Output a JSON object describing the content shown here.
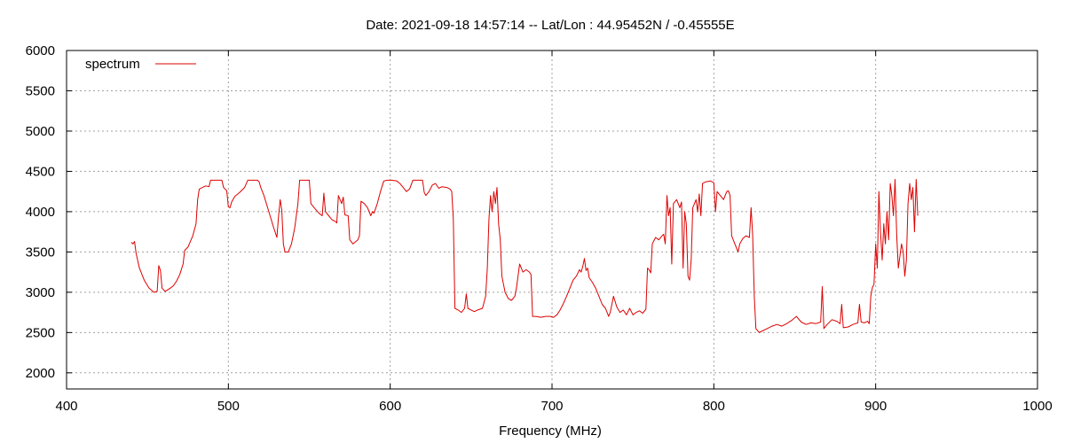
{
  "chart_data": {
    "type": "line",
    "title": "Date: 2021-09-18 14:57:14  --  Lat/Lon : 44.95452N / -0.45555E",
    "xlabel": "Frequency (MHz)",
    "ylabel": "",
    "xlim": [
      400,
      1000
    ],
    "ylim": [
      1800,
      6000
    ],
    "xticks": [
      400,
      500,
      600,
      700,
      800,
      900,
      1000
    ],
    "yticks": [
      2000,
      2500,
      3000,
      3500,
      4000,
      4500,
      5000,
      5500,
      6000
    ],
    "grid": true,
    "legend_position": "top-left",
    "series": [
      {
        "name": "spectrum",
        "color": "#dd0000",
        "points": [
          [
            440,
            3620
          ],
          [
            441,
            3600
          ],
          [
            442,
            3630
          ],
          [
            443,
            3480
          ],
          [
            445,
            3300
          ],
          [
            448,
            3150
          ],
          [
            451,
            3050
          ],
          [
            454,
            3000
          ],
          [
            456,
            3010
          ],
          [
            457,
            3330
          ],
          [
            458,
            3270
          ],
          [
            459,
            3050
          ],
          [
            461,
            3010
          ],
          [
            464,
            3050
          ],
          [
            466,
            3080
          ],
          [
            468,
            3140
          ],
          [
            470,
            3220
          ],
          [
            472,
            3350
          ],
          [
            473,
            3520
          ],
          [
            475,
            3560
          ],
          [
            478,
            3700
          ],
          [
            480,
            3850
          ],
          [
            481,
            4150
          ],
          [
            482,
            4280
          ],
          [
            484,
            4300
          ],
          [
            486,
            4320
          ],
          [
            488,
            4310
          ],
          [
            489,
            4390
          ],
          [
            491,
            4390
          ],
          [
            494,
            4390
          ],
          [
            496,
            4390
          ],
          [
            497,
            4300
          ],
          [
            499,
            4260
          ],
          [
            500,
            4060
          ],
          [
            501,
            4050
          ],
          [
            502,
            4120
          ],
          [
            504,
            4190
          ],
          [
            507,
            4240
          ],
          [
            510,
            4300
          ],
          [
            512,
            4390
          ],
          [
            516,
            4390
          ],
          [
            518,
            4390
          ],
          [
            519,
            4370
          ],
          [
            520,
            4300
          ],
          [
            522,
            4200
          ],
          [
            525,
            4000
          ],
          [
            528,
            3800
          ],
          [
            530,
            3680
          ],
          [
            531,
            3950
          ],
          [
            532,
            4150
          ],
          [
            533,
            4020
          ],
          [
            534,
            3600
          ],
          [
            535,
            3500
          ],
          [
            537,
            3500
          ],
          [
            539,
            3600
          ],
          [
            541,
            3800
          ],
          [
            543,
            4100
          ],
          [
            544,
            4390
          ],
          [
            548,
            4390
          ],
          [
            550,
            4390
          ],
          [
            551,
            4100
          ],
          [
            553,
            4050
          ],
          [
            556,
            3980
          ],
          [
            558,
            3950
          ],
          [
            559,
            4230
          ],
          [
            560,
            4000
          ],
          [
            562,
            3950
          ],
          [
            564,
            3900
          ],
          [
            566,
            3880
          ],
          [
            567,
            3860
          ],
          [
            568,
            4200
          ],
          [
            570,
            4100
          ],
          [
            571,
            4180
          ],
          [
            572,
            3960
          ],
          [
            574,
            3950
          ],
          [
            575,
            3650
          ],
          [
            577,
            3600
          ],
          [
            580,
            3650
          ],
          [
            581,
            3700
          ],
          [
            582,
            4130
          ],
          [
            584,
            4100
          ],
          [
            586,
            4050
          ],
          [
            588,
            3950
          ],
          [
            589,
            4000
          ],
          [
            590,
            3980
          ],
          [
            592,
            4100
          ],
          [
            594,
            4250
          ],
          [
            596,
            4380
          ],
          [
            598,
            4390
          ],
          [
            601,
            4390
          ],
          [
            604,
            4380
          ],
          [
            606,
            4350
          ],
          [
            608,
            4300
          ],
          [
            610,
            4250
          ],
          [
            612,
            4280
          ],
          [
            614,
            4390
          ],
          [
            617,
            4390
          ],
          [
            620,
            4390
          ],
          [
            621,
            4240
          ],
          [
            622,
            4200
          ],
          [
            624,
            4250
          ],
          [
            626,
            4330
          ],
          [
            628,
            4350
          ],
          [
            630,
            4290
          ],
          [
            632,
            4310
          ],
          [
            635,
            4300
          ],
          [
            637,
            4280
          ],
          [
            638,
            4250
          ],
          [
            639,
            3900
          ],
          [
            640,
            2800
          ],
          [
            642,
            2780
          ],
          [
            644,
            2750
          ],
          [
            646,
            2800
          ],
          [
            647,
            2980
          ],
          [
            648,
            2800
          ],
          [
            650,
            2780
          ],
          [
            652,
            2760
          ],
          [
            654,
            2780
          ],
          [
            657,
            2800
          ],
          [
            659,
            2950
          ],
          [
            660,
            3300
          ],
          [
            661,
            3900
          ],
          [
            662,
            4200
          ],
          [
            663,
            4000
          ],
          [
            664,
            4250
          ],
          [
            665,
            4100
          ],
          [
            666,
            4300
          ],
          [
            667,
            3850
          ],
          [
            668,
            3650
          ],
          [
            669,
            3200
          ],
          [
            671,
            3000
          ],
          [
            673,
            2920
          ],
          [
            675,
            2900
          ],
          [
            677,
            2950
          ],
          [
            678,
            3050
          ],
          [
            679,
            3200
          ],
          [
            680,
            3350
          ],
          [
            681,
            3300
          ],
          [
            682,
            3250
          ],
          [
            684,
            3280
          ],
          [
            686,
            3250
          ],
          [
            687,
            3220
          ],
          [
            688,
            2700
          ],
          [
            690,
            2700
          ],
          [
            693,
            2690
          ],
          [
            696,
            2700
          ],
          [
            699,
            2700
          ],
          [
            701,
            2690
          ],
          [
            703,
            2720
          ],
          [
            705,
            2780
          ],
          [
            707,
            2860
          ],
          [
            709,
            2950
          ],
          [
            711,
            3050
          ],
          [
            713,
            3150
          ],
          [
            715,
            3200
          ],
          [
            717,
            3280
          ],
          [
            718,
            3250
          ],
          [
            719,
            3320
          ],
          [
            720,
            3420
          ],
          [
            721,
            3270
          ],
          [
            722,
            3300
          ],
          [
            723,
            3180
          ],
          [
            725,
            3120
          ],
          [
            727,
            3050
          ],
          [
            729,
            2950
          ],
          [
            731,
            2850
          ],
          [
            733,
            2800
          ],
          [
            735,
            2700
          ],
          [
            736,
            2750
          ],
          [
            738,
            2950
          ],
          [
            740,
            2820
          ],
          [
            742,
            2750
          ],
          [
            744,
            2780
          ],
          [
            746,
            2720
          ],
          [
            748,
            2800
          ],
          [
            750,
            2720
          ],
          [
            752,
            2750
          ],
          [
            754,
            2770
          ],
          [
            756,
            2740
          ],
          [
            758,
            2790
          ],
          [
            759,
            3300
          ],
          [
            760,
            3280
          ],
          [
            761,
            3240
          ],
          [
            762,
            3600
          ],
          [
            764,
            3680
          ],
          [
            766,
            3650
          ],
          [
            768,
            3700
          ],
          [
            769,
            3720
          ],
          [
            770,
            3600
          ],
          [
            771,
            4200
          ],
          [
            772,
            3950
          ],
          [
            773,
            4050
          ],
          [
            774,
            3350
          ],
          [
            775,
            4100
          ],
          [
            777,
            4150
          ],
          [
            779,
            4050
          ],
          [
            780,
            4120
          ],
          [
            781,
            3300
          ],
          [
            782,
            4000
          ],
          [
            783,
            3850
          ],
          [
            784,
            3200
          ],
          [
            785,
            3150
          ],
          [
            786,
            3400
          ],
          [
            787,
            4050
          ],
          [
            788,
            4100
          ],
          [
            789,
            4150
          ],
          [
            790,
            4000
          ],
          [
            791,
            4220
          ],
          [
            792,
            3950
          ],
          [
            793,
            4350
          ],
          [
            795,
            4370
          ],
          [
            798,
            4380
          ],
          [
            800,
            4360
          ],
          [
            801,
            4000
          ],
          [
            802,
            4250
          ],
          [
            804,
            4200
          ],
          [
            806,
            4150
          ],
          [
            808,
            4250
          ],
          [
            809,
            4260
          ],
          [
            810,
            4200
          ],
          [
            811,
            3700
          ],
          [
            813,
            3600
          ],
          [
            815,
            3500
          ],
          [
            816,
            3600
          ],
          [
            818,
            3670
          ],
          [
            820,
            3700
          ],
          [
            822,
            3680
          ],
          [
            823,
            4050
          ],
          [
            824,
            3700
          ],
          [
            825,
            2950
          ],
          [
            826,
            2550
          ],
          [
            828,
            2500
          ],
          [
            830,
            2520
          ],
          [
            833,
            2550
          ],
          [
            836,
            2580
          ],
          [
            839,
            2600
          ],
          [
            842,
            2580
          ],
          [
            845,
            2610
          ],
          [
            848,
            2650
          ],
          [
            851,
            2700
          ],
          [
            854,
            2630
          ],
          [
            857,
            2600
          ],
          [
            860,
            2620
          ],
          [
            863,
            2610
          ],
          [
            866,
            2630
          ],
          [
            867,
            3070
          ],
          [
            868,
            2550
          ],
          [
            870,
            2600
          ],
          [
            873,
            2660
          ],
          [
            876,
            2640
          ],
          [
            878,
            2610
          ],
          [
            879,
            2850
          ],
          [
            880,
            2560
          ],
          [
            883,
            2570
          ],
          [
            886,
            2600
          ],
          [
            889,
            2620
          ],
          [
            890,
            2850
          ],
          [
            891,
            2630
          ],
          [
            893,
            2620
          ],
          [
            895,
            2640
          ],
          [
            896,
            2610
          ],
          [
            897,
            2950
          ],
          [
            898,
            3060
          ],
          [
            899,
            3100
          ],
          [
            900,
            3600
          ],
          [
            901,
            3300
          ],
          [
            902,
            4250
          ],
          [
            903,
            3750
          ],
          [
            904,
            3400
          ],
          [
            905,
            3850
          ],
          [
            906,
            3600
          ],
          [
            907,
            4000
          ],
          [
            908,
            3650
          ],
          [
            909,
            4350
          ],
          [
            910,
            4200
          ],
          [
            911,
            3950
          ],
          [
            912,
            4400
          ],
          [
            913,
            3700
          ],
          [
            914,
            3300
          ],
          [
            915,
            3450
          ],
          [
            916,
            3600
          ],
          [
            917,
            3500
          ],
          [
            918,
            3200
          ],
          [
            919,
            3400
          ],
          [
            920,
            4100
          ],
          [
            921,
            4350
          ],
          [
            922,
            4150
          ],
          [
            923,
            4300
          ],
          [
            924,
            3750
          ],
          [
            925,
            4400
          ],
          [
            926,
            3950
          ]
        ]
      }
    ]
  }
}
